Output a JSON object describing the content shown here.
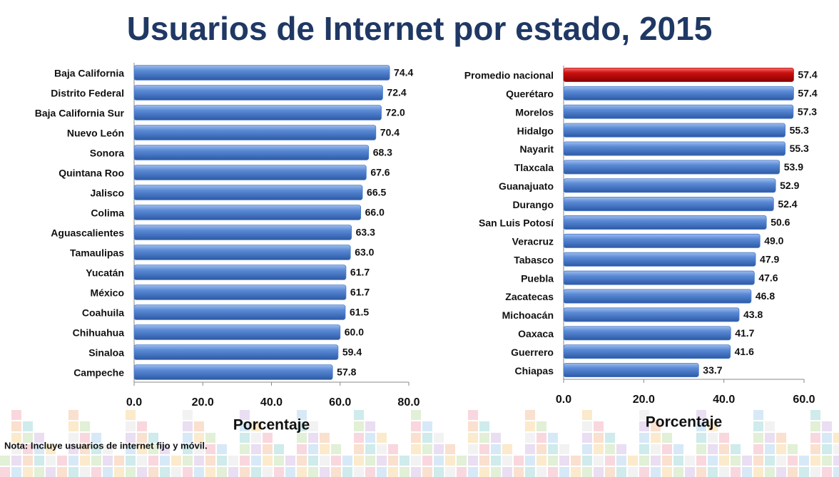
{
  "title": "Usuarios de Internet por estado, 2015",
  "note": "Nota: Incluye usuarios de internet fijo y móvil.",
  "chart_data": [
    {
      "type": "bar",
      "orientation": "horizontal",
      "x_label": "Porcentaje",
      "categories": [
        "Baja California",
        "Distrito Federal",
        "Baja California Sur",
        "Nuevo León",
        "Sonora",
        "Quintana Roo",
        "Jalisco",
        "Colima",
        "Aguascalientes",
        "Tamaulipas",
        "Yucatán",
        "México",
        "Coahuila",
        "Chihuahua",
        "Sinaloa",
        "Campeche"
      ],
      "values": [
        74.4,
        72.4,
        72,
        70.4,
        68.3,
        67.6,
        66.5,
        66,
        63.3,
        63,
        61.7,
        61.7,
        61.5,
        60,
        59.4,
        57.8
      ],
      "value_labels": [
        "74.4",
        "72.4",
        "72.0",
        "70.4",
        "68.3",
        "67.6",
        "66.5",
        "66.0",
        "63.3",
        "63.0",
        "61.7",
        "61.7",
        "61.5",
        "60.0",
        "59.4",
        "57.8"
      ],
      "color": "#4a7bc8",
      "xlim": [
        0,
        80
      ],
      "xticks": [
        {
          "value": 0,
          "label": "0.0"
        },
        {
          "value": 20,
          "label": "20.0"
        },
        {
          "value": 40,
          "label": "40.0"
        },
        {
          "value": 60,
          "label": "60.0"
        },
        {
          "value": 80,
          "label": "80.0"
        }
      ]
    },
    {
      "type": "bar",
      "orientation": "horizontal",
      "x_label": "Porcentaje",
      "categories": [
        "Promedio nacional",
        "Querétaro",
        "Morelos",
        "Hidalgo",
        "Nayarit",
        "Tlaxcala",
        "Guanajuato",
        "Durango",
        "San Luis Potosí",
        "Veracruz",
        "Tabasco",
        "Puebla",
        "Zacatecas",
        "Michoacán",
        "Oaxaca",
        "Guerrero",
        "Chiapas"
      ],
      "values": [
        57.4,
        57.4,
        57.3,
        55.3,
        55.3,
        53.9,
        52.9,
        52.4,
        50.6,
        49,
        47.9,
        47.6,
        46.8,
        43.8,
        41.7,
        41.6,
        33.7
      ],
      "value_labels": [
        "57.4",
        "57.4",
        "57.3",
        "55.3",
        "55.3",
        "53.9",
        "52.9",
        "52.4",
        "50.6",
        "49.0",
        "47.9",
        "47.6",
        "46.8",
        "43.8",
        "41.7",
        "41.6",
        "33.7"
      ],
      "colors": [
        "#c00000",
        "#4a7bc8",
        "#4a7bc8",
        "#4a7bc8",
        "#4a7bc8",
        "#4a7bc8",
        "#4a7bc8",
        "#4a7bc8",
        "#4a7bc8",
        "#4a7bc8",
        "#4a7bc8",
        "#4a7bc8",
        "#4a7bc8",
        "#4a7bc8",
        "#4a7bc8",
        "#4a7bc8",
        "#4a7bc8"
      ],
      "xlim": [
        0,
        60
      ],
      "xticks": [
        {
          "value": 0,
          "label": "0.0"
        },
        {
          "value": 20,
          "label": "20.0"
        },
        {
          "value": 40,
          "label": "40.0"
        },
        {
          "value": 60,
          "label": "60.0"
        }
      ]
    }
  ]
}
